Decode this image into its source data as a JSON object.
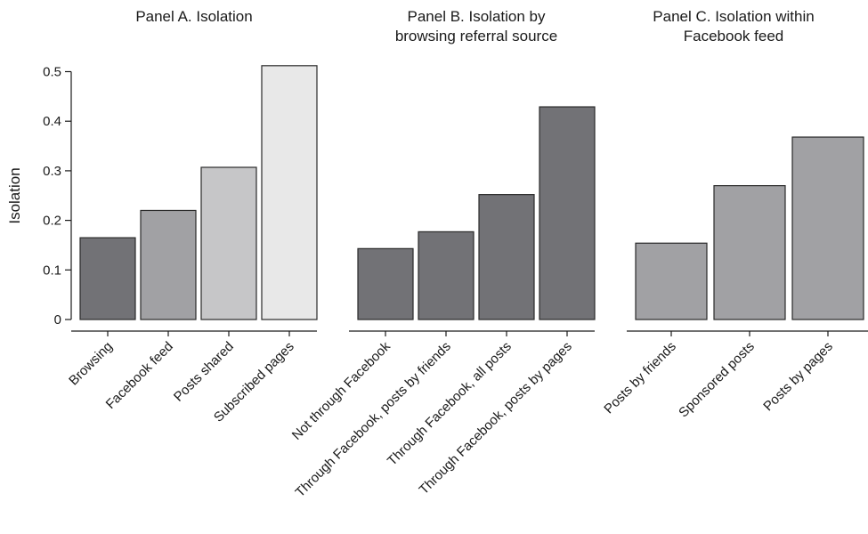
{
  "chart_data": [
    {
      "type": "bar",
      "title_lines": [
        "Panel A. Isolation"
      ],
      "categories": [
        "Browsing",
        "Facebook feed",
        "Posts shared",
        "Subscribed pages"
      ],
      "values": [
        0.165,
        0.22,
        0.307,
        0.512
      ],
      "colors": [
        "#727276",
        "#a1a1a4",
        "#c6c6c8",
        "#e8e8e8"
      ],
      "ylabel": "Isolation",
      "ylim": [
        0,
        0.5
      ],
      "yticks": [
        0,
        0.1,
        0.2,
        0.3,
        0.4,
        0.5
      ],
      "ytick_labels": [
        "0",
        "0.1",
        "0.2",
        "0.3",
        "0.4",
        "0.5"
      ],
      "grid": false
    },
    {
      "type": "bar",
      "title_lines": [
        "Panel B. Isolation by",
        "browsing referral source"
      ],
      "categories": [
        "Not through Facebook",
        "Through Facebook, posts by friends",
        "Through Facebook, all posts",
        "Through Facebook, posts by pages"
      ],
      "values": [
        0.143,
        0.177,
        0.252,
        0.429
      ],
      "colors": [
        "#727276",
        "#727276",
        "#727276",
        "#727276"
      ],
      "grid": false
    },
    {
      "type": "bar",
      "title_lines": [
        "Panel C. Isolation within",
        "Facebook feed"
      ],
      "categories": [
        "Posts by friends",
        "Sponsored posts",
        "Posts by pages"
      ],
      "values": [
        0.154,
        0.27,
        0.368
      ],
      "colors": [
        "#a1a1a4",
        "#a1a1a4",
        "#a1a1a4"
      ],
      "grid": false
    }
  ]
}
